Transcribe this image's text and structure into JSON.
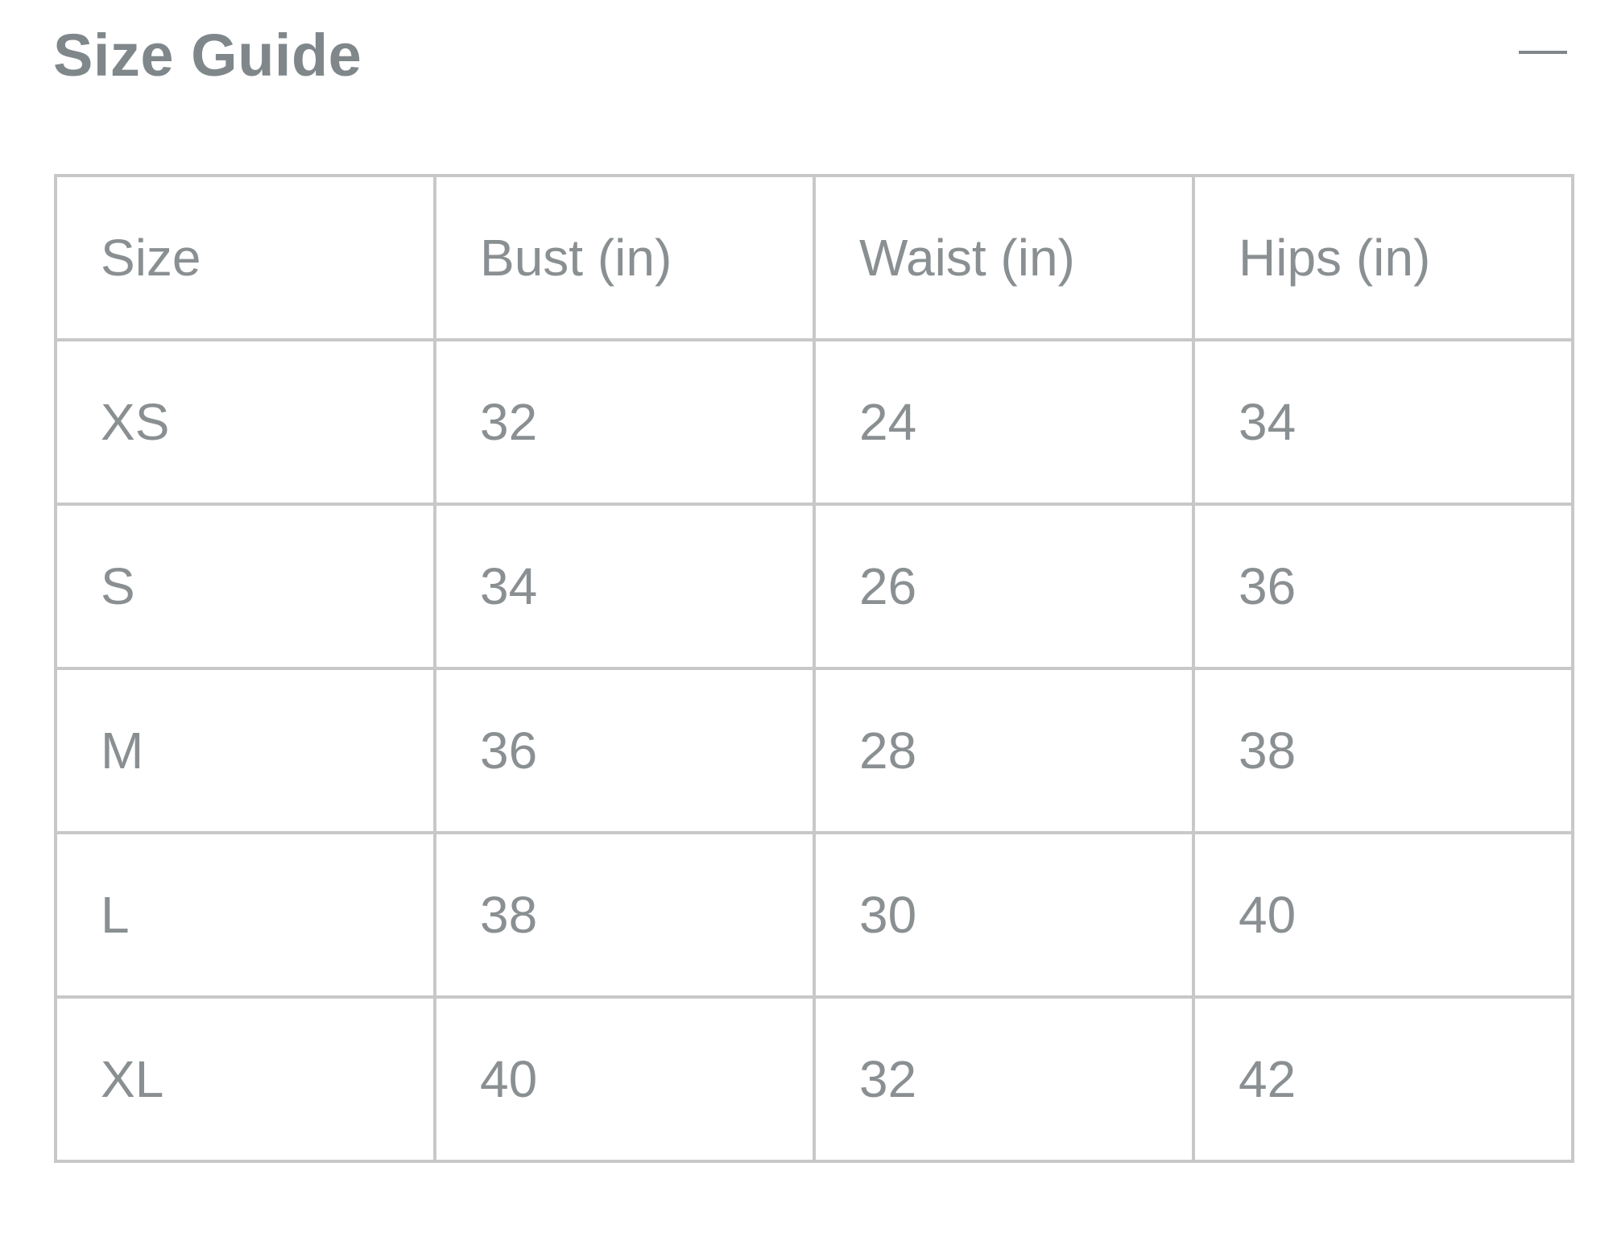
{
  "header": {
    "title": "Size Guide",
    "collapse_icon": "minus-icon"
  },
  "table": {
    "columns": [
      "Size",
      "Bust (in)",
      "Waist (in)",
      "Hips (in)"
    ],
    "rows": [
      [
        "XS",
        "32",
        "24",
        "34"
      ],
      [
        "S",
        "34",
        "26",
        "36"
      ],
      [
        "M",
        "36",
        "28",
        "38"
      ],
      [
        "L",
        "38",
        "30",
        "40"
      ],
      [
        "XL",
        "40",
        "32",
        "42"
      ]
    ]
  },
  "colors": {
    "text": "#8a8f92",
    "title": "#80878b",
    "border": "#c8c8c8"
  }
}
